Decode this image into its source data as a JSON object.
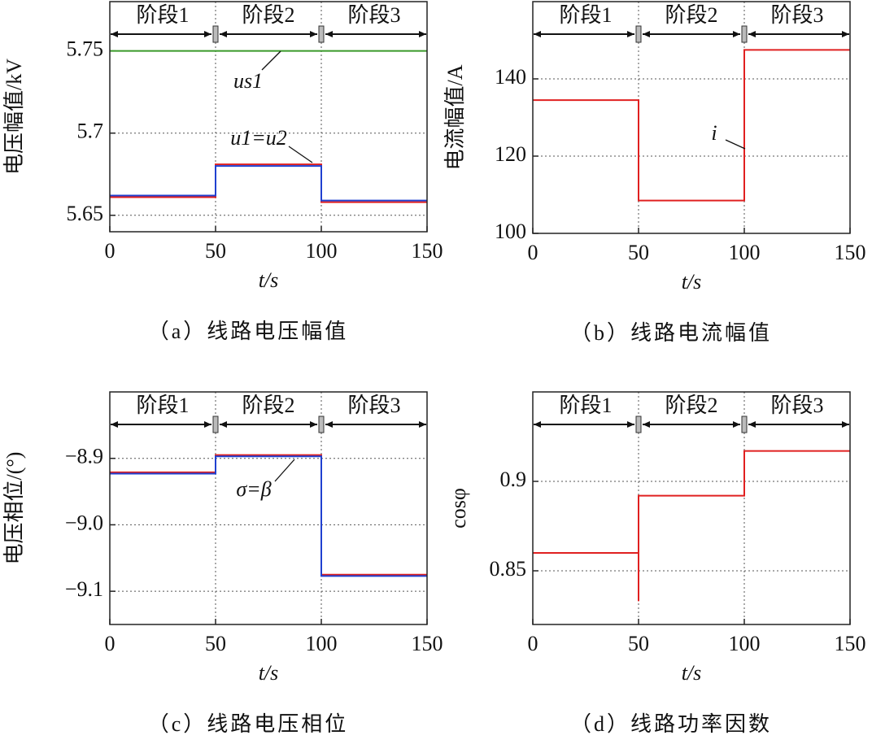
{
  "chart_data": [
    {
      "type": "line",
      "title": "（a）线路电压幅值",
      "xlabel": "t/s",
      "ylabel": "电压幅值/kV",
      "xlim": [
        0,
        150
      ],
      "xticks": [
        0,
        50,
        100,
        150
      ],
      "ylim": [
        5.64,
        5.78
      ],
      "yticks": [
        5.65,
        5.7,
        5.75
      ],
      "stages": [
        "阶段1",
        "阶段2",
        "阶段3"
      ],
      "annotations": [
        "us1",
        "u1=u2"
      ],
      "grid": true,
      "series": [
        {
          "color": "#3a9a2a",
          "x": [
            0,
            150
          ],
          "values": [
            5.75,
            5.75
          ]
        },
        {
          "color": "#e02020",
          "x": [
            0,
            50,
            50,
            100,
            100,
            150
          ],
          "values": [
            5.661,
            5.661,
            5.681,
            5.681,
            5.658,
            5.658
          ]
        },
        {
          "color": "#2040d0",
          "x": [
            0,
            50,
            50,
            100,
            100,
            150
          ],
          "values": [
            5.662,
            5.662,
            5.68,
            5.68,
            5.659,
            5.659
          ]
        }
      ]
    },
    {
      "type": "line",
      "title": "（b）线路电流幅值",
      "xlabel": "t/s",
      "ylabel": "电流幅值/A",
      "xlim": [
        0,
        150
      ],
      "xticks": [
        0,
        50,
        100,
        150
      ],
      "ylim": [
        100,
        160
      ],
      "yticks": [
        100,
        120,
        140
      ],
      "stages": [
        "阶段1",
        "阶段2",
        "阶段3"
      ],
      "annotations": [
        "i"
      ],
      "grid": true,
      "series": [
        {
          "color": "#e02020",
          "x": [
            0,
            50,
            50,
            100,
            100,
            150
          ],
          "values": [
            134.5,
            134.5,
            108.5,
            108.5,
            147.5,
            147.5
          ]
        }
      ]
    },
    {
      "type": "line",
      "title": "（c）线路电压相位",
      "xlabel": "t/s",
      "ylabel": "电压相位/(°)",
      "xlim": [
        0,
        150
      ],
      "xticks": [
        0,
        50,
        100,
        150
      ],
      "ylim": [
        -9.15,
        -8.8
      ],
      "yticks": [
        {
          "value": -9.1,
          "label": "−9.1"
        },
        {
          "value": -9.0,
          "label": "−9.0"
        },
        {
          "value": -8.9,
          "label": "−8.9"
        }
      ],
      "stages": [
        "阶段1",
        "阶段2",
        "阶段3"
      ],
      "annotations": [
        "σ=β"
      ],
      "grid": true,
      "series": [
        {
          "color": "#e02020",
          "x": [
            0,
            50,
            50,
            100,
            100,
            150
          ],
          "values": [
            -8.921,
            -8.921,
            -8.895,
            -8.895,
            -9.075,
            -9.075
          ]
        },
        {
          "color": "#2040d0",
          "x": [
            0,
            50,
            50,
            100,
            100,
            150
          ],
          "values": [
            -8.923,
            -8.923,
            -8.897,
            -8.897,
            -9.077,
            -9.077
          ]
        }
      ]
    },
    {
      "type": "line",
      "title": "（d）线路功率因数",
      "xlabel": "t/s",
      "ylabel": "cosφ",
      "xlim": [
        0,
        150
      ],
      "xticks": [
        0,
        50,
        100,
        150
      ],
      "ylim": [
        0.82,
        0.95
      ],
      "yticks": [
        0.85,
        0.9
      ],
      "stages": [
        "阶段1",
        "阶段2",
        "阶段3"
      ],
      "annotations": [],
      "grid": true,
      "series": [
        {
          "color": "#e02020",
          "x": [
            0,
            50,
            50,
            50,
            100,
            100,
            150
          ],
          "values": [
            0.86,
            0.86,
            0.833,
            0.892,
            0.892,
            0.917,
            0.917
          ]
        }
      ]
    }
  ]
}
